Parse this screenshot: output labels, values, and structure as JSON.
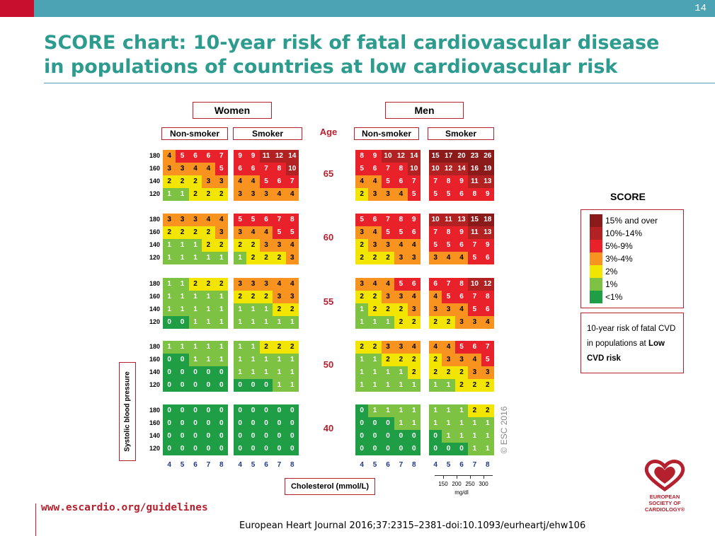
{
  "page_number": "14",
  "title_line1": "SCORE chart: 10-year risk of fatal cardiovascular disease",
  "title_line2": "in populations of countries at low cardiovascular risk",
  "url": "www.escardio.org/guidelines",
  "citation": "European Heart Journal 2016;37:2315–2381-doi:10.1093/eurheartj/ehw106",
  "copyright": "© ESC 2016",
  "logo_text": [
    "EUROPEAN",
    "SOCIETY OF",
    "CARDIOLOGY®"
  ],
  "colors": {
    "dark_red": "#8b1a1a",
    "brown_red": "#b22222",
    "red": "#e8212b",
    "orange": "#f7931e",
    "yellow": "#f2e600",
    "light_green": "#7dc242",
    "green": "#1f9e45",
    "accent_teal": "#2d9c8f",
    "accent_red": "#b5202e"
  },
  "chart_data": {
    "type": "heatmap",
    "title": "SCORE",
    "genders": [
      "Women",
      "Men"
    ],
    "smoking_status": [
      "Non-smoker",
      "Smoker"
    ],
    "age_header": "Age",
    "ages": [
      "65",
      "60",
      "55",
      "50",
      "40"
    ],
    "sbp_labels": [
      "180",
      "160",
      "140",
      "120"
    ],
    "cholesterol_labels": [
      "4",
      "5",
      "6",
      "7",
      "8"
    ],
    "ylabel": "Systolic blood pressure",
    "xlabel": "Cholesterol (mmol/L)",
    "mgdl_ticks": [
      "150",
      "200",
      "250",
      "300"
    ],
    "mgdl_unit": "mg/dl",
    "legend": [
      {
        "label": "15% and over",
        "color": "#8b1a1a"
      },
      {
        "label": "10%-14%",
        "color": "#b22222"
      },
      {
        "label": "5%-9%",
        "color": "#e8212b"
      },
      {
        "label": "3%-4%",
        "color": "#f7931e"
      },
      {
        "label": "2%",
        "color": "#f2e600"
      },
      {
        "label": "1%",
        "color": "#7dc242"
      },
      {
        "label": "<1%",
        "color": "#1f9e45"
      }
    ],
    "note_text": "10-year risk of fatal CVD in populations at",
    "note_bold": "Low CVD risk",
    "grid": {
      "65": {
        "women_nonsmoker": [
          [
            4,
            5,
            6,
            6,
            7
          ],
          [
            3,
            3,
            4,
            4,
            5
          ],
          [
            2,
            2,
            2,
            3,
            3
          ],
          [
            1,
            1,
            2,
            2,
            2
          ]
        ],
        "women_smoker": [
          [
            9,
            9,
            11,
            12,
            14
          ],
          [
            6,
            6,
            7,
            8,
            10
          ],
          [
            4,
            4,
            5,
            6,
            7
          ],
          [
            3,
            3,
            3,
            4,
            4
          ]
        ],
        "men_nonsmoker": [
          [
            8,
            9,
            10,
            12,
            14
          ],
          [
            5,
            6,
            7,
            8,
            10
          ],
          [
            4,
            4,
            5,
            6,
            7
          ],
          [
            2,
            3,
            3,
            4,
            5
          ]
        ],
        "men_smoker": [
          [
            15,
            17,
            20,
            23,
            26
          ],
          [
            10,
            12,
            14,
            16,
            19
          ],
          [
            7,
            8,
            9,
            11,
            13
          ],
          [
            5,
            5,
            6,
            8,
            9
          ]
        ]
      },
      "60": {
        "women_nonsmoker": [
          [
            3,
            3,
            3,
            4,
            4
          ],
          [
            2,
            2,
            2,
            2,
            3
          ],
          [
            1,
            1,
            1,
            2,
            2
          ],
          [
            1,
            1,
            1,
            1,
            1
          ]
        ],
        "women_smoker": [
          [
            5,
            5,
            6,
            7,
            8
          ],
          [
            3,
            4,
            4,
            5,
            5
          ],
          [
            2,
            2,
            3,
            3,
            4
          ],
          [
            1,
            2,
            2,
            2,
            3
          ]
        ],
        "men_nonsmoker": [
          [
            5,
            6,
            7,
            8,
            9
          ],
          [
            3,
            4,
            5,
            5,
            6
          ],
          [
            2,
            3,
            3,
            4,
            4
          ],
          [
            2,
            2,
            2,
            3,
            3
          ]
        ],
        "men_smoker": [
          [
            10,
            11,
            13,
            15,
            18
          ],
          [
            7,
            8,
            9,
            11,
            13
          ],
          [
            5,
            5,
            6,
            7,
            9
          ],
          [
            3,
            4,
            4,
            5,
            6
          ]
        ]
      },
      "55": {
        "women_nonsmoker": [
          [
            1,
            1,
            2,
            2,
            2
          ],
          [
            1,
            1,
            1,
            1,
            1
          ],
          [
            1,
            1,
            1,
            1,
            1
          ],
          [
            0,
            0,
            1,
            1,
            1
          ]
        ],
        "women_smoker": [
          [
            3,
            3,
            3,
            4,
            4
          ],
          [
            2,
            2,
            2,
            3,
            3
          ],
          [
            1,
            1,
            1,
            2,
            2
          ],
          [
            1,
            1,
            1,
            1,
            1
          ]
        ],
        "men_nonsmoker": [
          [
            3,
            4,
            4,
            5,
            6
          ],
          [
            2,
            2,
            3,
            3,
            4
          ],
          [
            1,
            2,
            2,
            2,
            3
          ],
          [
            1,
            1,
            1,
            2,
            2
          ]
        ],
        "men_smoker": [
          [
            6,
            7,
            8,
            10,
            12
          ],
          [
            4,
            5,
            6,
            7,
            8
          ],
          [
            3,
            3,
            4,
            5,
            6
          ],
          [
            2,
            2,
            3,
            3,
            4
          ]
        ]
      },
      "50": {
        "women_nonsmoker": [
          [
            1,
            1,
            1,
            1,
            1
          ],
          [
            0,
            0,
            1,
            1,
            1
          ],
          [
            0,
            0,
            0,
            0,
            0
          ],
          [
            0,
            0,
            0,
            0,
            0
          ]
        ],
        "women_smoker": [
          [
            1,
            1,
            2,
            2,
            2
          ],
          [
            1,
            1,
            1,
            1,
            1
          ],
          [
            1,
            1,
            1,
            1,
            1
          ],
          [
            0,
            0,
            0,
            1,
            1
          ]
        ],
        "men_nonsmoker": [
          [
            2,
            2,
            3,
            3,
            4
          ],
          [
            1,
            1,
            2,
            2,
            2
          ],
          [
            1,
            1,
            1,
            1,
            2
          ],
          [
            1,
            1,
            1,
            1,
            1
          ]
        ],
        "men_smoker": [
          [
            4,
            4,
            5,
            6,
            7
          ],
          [
            2,
            3,
            3,
            4,
            5
          ],
          [
            2,
            2,
            2,
            3,
            3
          ],
          [
            1,
            1,
            2,
            2,
            2
          ]
        ]
      },
      "40": {
        "women_nonsmoker": [
          [
            0,
            0,
            0,
            0,
            0
          ],
          [
            0,
            0,
            0,
            0,
            0
          ],
          [
            0,
            0,
            0,
            0,
            0
          ],
          [
            0,
            0,
            0,
            0,
            0
          ]
        ],
        "women_smoker": [
          [
            0,
            0,
            0,
            0,
            0
          ],
          [
            0,
            0,
            0,
            0,
            0
          ],
          [
            0,
            0,
            0,
            0,
            0
          ],
          [
            0,
            0,
            0,
            0,
            0
          ]
        ],
        "men_nonsmoker": [
          [
            0,
            1,
            1,
            1,
            1
          ],
          [
            0,
            0,
            0,
            1,
            1
          ],
          [
            0,
            0,
            0,
            0,
            0
          ],
          [
            0,
            0,
            0,
            0,
            0
          ]
        ],
        "men_smoker": [
          [
            1,
            1,
            1,
            2,
            2
          ],
          [
            1,
            1,
            1,
            1,
            1
          ],
          [
            0,
            1,
            1,
            1,
            1
          ],
          [
            0,
            0,
            0,
            1,
            1
          ]
        ]
      }
    }
  }
}
